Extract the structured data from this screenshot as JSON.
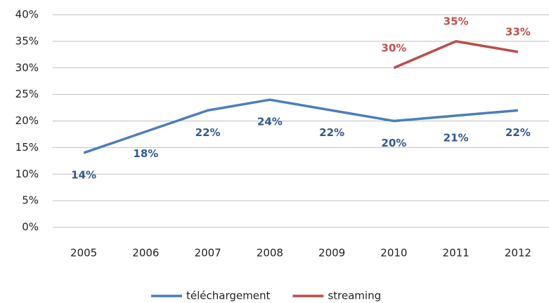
{
  "chart_data": {
    "type": "line",
    "categories": [
      "2005",
      "2006",
      "2007",
      "2008",
      "2009",
      "2010",
      "2011",
      "2012"
    ],
    "series": [
      {
        "name": "téléchargement",
        "color": "#4a7ebb",
        "values": [
          14,
          18,
          22,
          24,
          22,
          20,
          21,
          22
        ],
        "value_labels": [
          "14%",
          "18%",
          "22%",
          "24%",
          "22%",
          "20%",
          "21%",
          "22%"
        ]
      },
      {
        "name": "streaming",
        "color": "#be4b48",
        "values": [
          null,
          null,
          null,
          null,
          null,
          30,
          35,
          33
        ],
        "value_labels": [
          null,
          null,
          null,
          null,
          null,
          "30%",
          "35%",
          "33%"
        ]
      }
    ],
    "ylim": [
      0,
      40
    ],
    "yticks": [
      {
        "value": 0,
        "label": "0%"
      },
      {
        "value": 5,
        "label": "5%"
      },
      {
        "value": 10,
        "label": "10%"
      },
      {
        "value": 15,
        "label": "15%"
      },
      {
        "value": 20,
        "label": "20%"
      },
      {
        "value": 25,
        "label": "25%"
      },
      {
        "value": 30,
        "label": "30%"
      },
      {
        "value": 35,
        "label": "35%"
      },
      {
        "value": 40,
        "label": "40%"
      }
    ],
    "grid": true,
    "legend": "bottom"
  }
}
